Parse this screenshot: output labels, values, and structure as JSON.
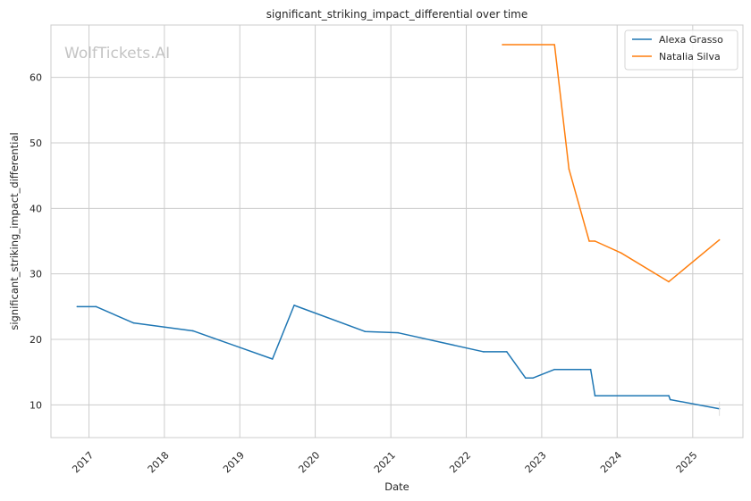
{
  "chart_data": {
    "type": "line",
    "title": "significant_striking_impact_differential over time",
    "xlabel": "Date",
    "ylabel": "significant_striking_impact_differential",
    "watermark": "WolfTickets.AI",
    "xlim": [
      "2016-07-01",
      "2025-09-01"
    ],
    "ylim": [
      5,
      68
    ],
    "x_ticks": [
      {
        "date": "2017-01-01",
        "label": "2017"
      },
      {
        "date": "2018-01-01",
        "label": "2018"
      },
      {
        "date": "2019-01-01",
        "label": "2019"
      },
      {
        "date": "2020-01-01",
        "label": "2020"
      },
      {
        "date": "2021-01-01",
        "label": "2021"
      },
      {
        "date": "2022-01-01",
        "label": "2022"
      },
      {
        "date": "2023-01-01",
        "label": "2023"
      },
      {
        "date": "2024-01-01",
        "label": "2024"
      },
      {
        "date": "2025-01-01",
        "label": "2025"
      }
    ],
    "y_ticks": [
      10,
      20,
      30,
      40,
      50,
      60
    ],
    "grid": true,
    "legend_position": "top-right",
    "series": [
      {
        "name": "Alexa Grasso",
        "color": "#1f77b4",
        "points": [
          [
            "2016-11-05",
            25.0
          ],
          [
            "2017-02-04",
            25.0
          ],
          [
            "2017-08-05",
            22.5
          ],
          [
            "2018-05-19",
            21.3
          ],
          [
            "2019-06-08",
            17.0
          ],
          [
            "2019-09-21",
            25.2
          ],
          [
            "2020-08-29",
            21.2
          ],
          [
            "2021-02-06",
            21.0
          ],
          [
            "2022-03-26",
            18.1
          ],
          [
            "2022-07-16",
            18.1
          ],
          [
            "2022-10-15",
            14.1
          ],
          [
            "2022-11-19",
            14.1
          ],
          [
            "2023-03-04",
            15.4
          ],
          [
            "2023-08-26",
            15.4
          ],
          [
            "2023-09-16",
            11.4
          ],
          [
            "2024-09-07",
            11.4
          ],
          [
            "2024-09-14",
            10.8
          ],
          [
            "2025-05-10",
            9.4
          ]
        ]
      },
      {
        "name": "Natalia Silva",
        "color": "#ff7f0e",
        "points": [
          [
            "2022-06-25",
            65.0
          ],
          [
            "2023-03-04",
            65.0
          ],
          [
            "2023-05-13",
            46.0
          ],
          [
            "2023-08-19",
            35.0
          ],
          [
            "2023-09-16",
            35.0
          ],
          [
            "2024-01-20",
            33.2
          ],
          [
            "2024-09-07",
            28.8
          ],
          [
            "2025-05-10",
            35.2
          ]
        ]
      }
    ]
  }
}
